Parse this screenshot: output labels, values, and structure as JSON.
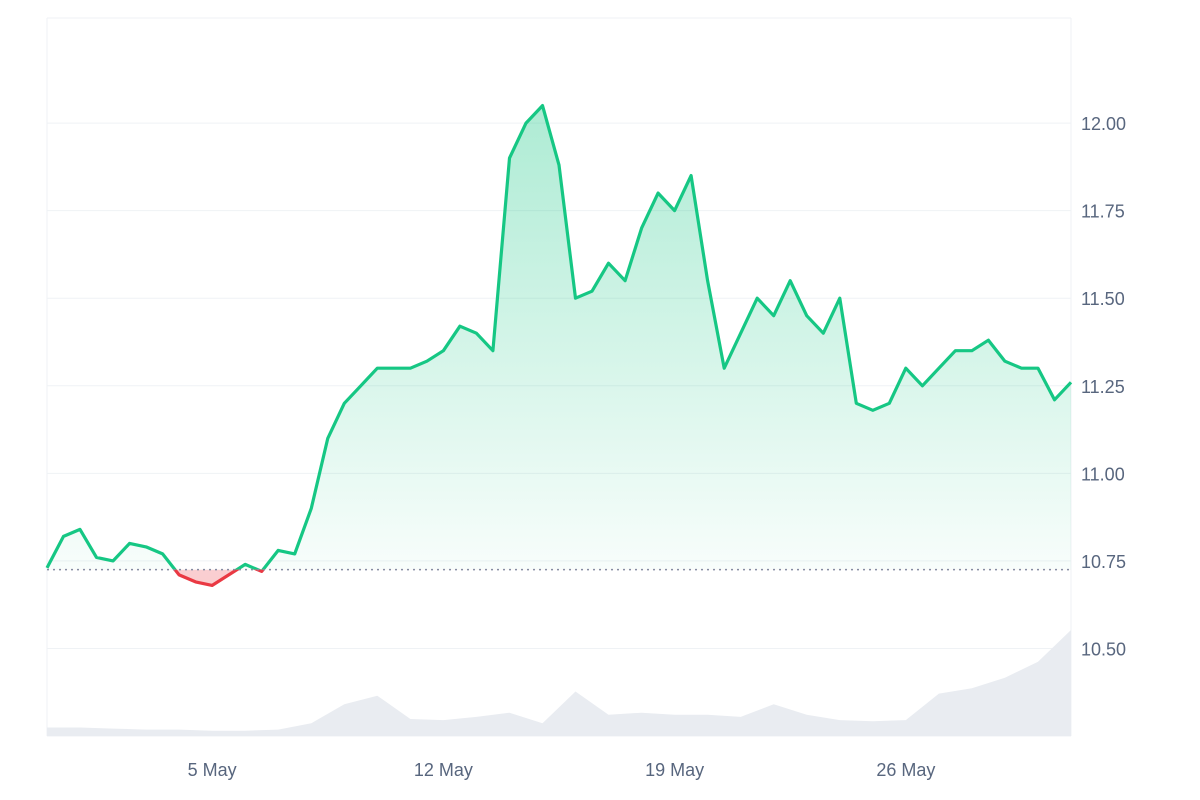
{
  "chart_data": {
    "type": "area",
    "x_ticks": [
      "5 May",
      "12 May",
      "19 May",
      "26 May"
    ],
    "y_ticks": [
      "12.00",
      "11.75",
      "11.50",
      "11.25",
      "11.00",
      "10.75",
      "10.50"
    ],
    "y_tick_values": [
      12.0,
      11.75,
      11.5,
      11.25,
      11.0,
      10.75,
      10.5
    ],
    "ylim": [
      10.25,
      12.3
    ],
    "x_start": "2024-04-30",
    "x_end": "2024-05-31",
    "baseline": 10.725,
    "grid": true,
    "price": {
      "x": [
        "2024-04-30",
        "2024-04-30T12",
        "2024-05-01",
        "2024-05-01T12",
        "2024-05-02",
        "2024-05-02T12",
        "2024-05-03",
        "2024-05-03T12",
        "2024-05-04",
        "2024-05-04T12",
        "2024-05-05",
        "2024-05-05T12",
        "2024-05-06",
        "2024-05-06T12",
        "2024-05-07",
        "2024-05-07T12",
        "2024-05-08",
        "2024-05-08T12",
        "2024-05-09",
        "2024-05-09T12",
        "2024-05-10",
        "2024-05-10T12",
        "2024-05-11",
        "2024-05-11T12",
        "2024-05-12",
        "2024-05-12T12",
        "2024-05-13",
        "2024-05-13T12",
        "2024-05-14",
        "2024-05-14T12",
        "2024-05-15",
        "2024-05-15T12",
        "2024-05-16",
        "2024-05-16T12",
        "2024-05-17",
        "2024-05-17T12",
        "2024-05-18",
        "2024-05-18T12",
        "2024-05-19",
        "2024-05-19T12",
        "2024-05-20",
        "2024-05-20T12",
        "2024-05-21",
        "2024-05-21T12",
        "2024-05-22",
        "2024-05-22T12",
        "2024-05-23",
        "2024-05-23T12",
        "2024-05-24",
        "2024-05-24T12",
        "2024-05-25",
        "2024-05-25T12",
        "2024-05-26",
        "2024-05-26T12",
        "2024-05-27",
        "2024-05-27T12",
        "2024-05-28",
        "2024-05-28T12",
        "2024-05-29",
        "2024-05-29T12",
        "2024-05-30",
        "2024-05-30T12",
        "2024-05-31"
      ],
      "y": [
        10.73,
        10.82,
        10.84,
        10.76,
        10.75,
        10.8,
        10.79,
        10.77,
        10.71,
        10.69,
        10.68,
        10.71,
        10.74,
        10.72,
        10.78,
        10.77,
        10.9,
        11.1,
        11.2,
        11.25,
        11.3,
        11.3,
        11.3,
        11.32,
        11.35,
        11.42,
        11.4,
        11.35,
        11.9,
        12.0,
        12.05,
        11.88,
        11.5,
        11.52,
        11.6,
        11.55,
        11.7,
        11.8,
        11.75,
        11.85,
        11.55,
        11.3,
        11.4,
        11.5,
        11.45,
        11.55,
        11.45,
        11.4,
        11.5,
        11.2,
        11.18,
        11.2,
        11.3,
        11.25,
        11.3,
        11.35,
        11.35,
        11.38,
        11.32,
        11.3,
        11.3,
        11.21,
        11.26
      ]
    },
    "volume": {
      "x": [
        "2024-04-30",
        "2024-05-01",
        "2024-05-02",
        "2024-05-03",
        "2024-05-04",
        "2024-05-05",
        "2024-05-06",
        "2024-05-07",
        "2024-05-08",
        "2024-05-09",
        "2024-05-10",
        "2024-05-11",
        "2024-05-12",
        "2024-05-13",
        "2024-05-14",
        "2024-05-15",
        "2024-05-16",
        "2024-05-17",
        "2024-05-18",
        "2024-05-19",
        "2024-05-20",
        "2024-05-21",
        "2024-05-22",
        "2024-05-23",
        "2024-05-24",
        "2024-05-25",
        "2024-05-26",
        "2024-05-27",
        "2024-05-28",
        "2024-05-29",
        "2024-05-30",
        "2024-05-31"
      ],
      "values": [
        0.08,
        0.08,
        0.07,
        0.06,
        0.06,
        0.05,
        0.05,
        0.06,
        0.12,
        0.3,
        0.38,
        0.16,
        0.15,
        0.18,
        0.22,
        0.12,
        0.42,
        0.2,
        0.22,
        0.2,
        0.2,
        0.18,
        0.3,
        0.2,
        0.15,
        0.14,
        0.15,
        0.4,
        0.45,
        0.55,
        0.7,
        1.0
      ]
    },
    "colors": {
      "up": "#16c784",
      "down": "#ea3943",
      "grid": "#eff2f5",
      "axis_text": "#58667e",
      "baseline": "#858ca2",
      "volume": "#e9ecf1"
    }
  }
}
